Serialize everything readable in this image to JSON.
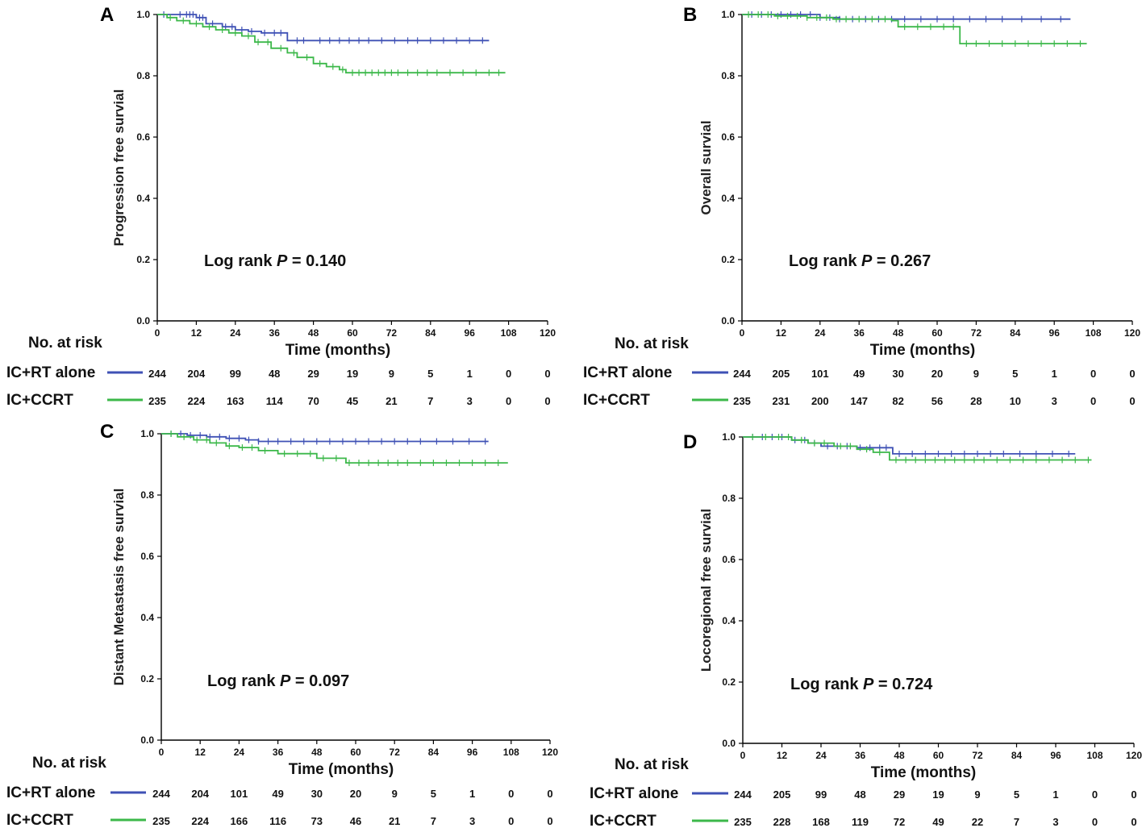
{
  "colors": {
    "ic_rt": "#3f51b5",
    "ic_ccrt": "#3cb84a",
    "axis": "#000000"
  },
  "risk_title": "No. at risk",
  "chart_data": [
    {
      "type": "line",
      "panel": "A",
      "ylabel": "Progression free survial",
      "xlabel": "Time (months)",
      "xlim": [
        0,
        120
      ],
      "ylim": [
        0,
        1.0
      ],
      "xticks": [
        "0",
        "12",
        "24",
        "36",
        "48",
        "60",
        "72",
        "84",
        "96",
        "108",
        "120"
      ],
      "yticks": [
        "0.0",
        "0.2",
        "0.4",
        "0.6",
        "0.8",
        "1.0"
      ],
      "logrank_prefix": "Log rank ",
      "logrank_p": "P",
      "logrank_value": " = 0.140",
      "series": [
        {
          "name": "IC+RT alone",
          "color": "#3f51b5",
          "x": [
            0,
            5,
            12,
            15,
            20,
            24,
            28,
            32,
            40,
            102
          ],
          "y": [
            1.0,
            1.0,
            0.99,
            0.97,
            0.96,
            0.95,
            0.945,
            0.94,
            0.915,
            0.915
          ],
          "censor_x": [
            2,
            7,
            9,
            10,
            11,
            13,
            14,
            17,
            21,
            23,
            26,
            29,
            33,
            36,
            38,
            43,
            45,
            50,
            53,
            56,
            59,
            62,
            65,
            69,
            73,
            77,
            80,
            84,
            88,
            92,
            96,
            100
          ],
          "at_risk": [
            "244",
            "204",
            "99",
            "48",
            "29",
            "19",
            "9",
            "5",
            "1",
            "0",
            "0"
          ]
        },
        {
          "name": "IC+CCRT",
          "color": "#3cb84a",
          "x": [
            0,
            3,
            6,
            10,
            14,
            18,
            22,
            26,
            30,
            35,
            40,
            43,
            48,
            52,
            56,
            58,
            107
          ],
          "y": [
            1.0,
            0.99,
            0.98,
            0.97,
            0.96,
            0.95,
            0.94,
            0.93,
            0.91,
            0.89,
            0.875,
            0.86,
            0.84,
            0.83,
            0.82,
            0.81,
            0.81
          ],
          "censor_x": [
            4,
            8,
            12,
            16,
            20,
            24,
            28,
            31,
            34,
            38,
            42,
            46,
            50,
            54,
            57,
            60,
            62,
            64,
            66,
            68,
            70,
            72,
            74,
            77,
            80,
            83,
            86,
            90,
            94,
            98,
            102,
            105
          ],
          "at_risk": [
            "235",
            "224",
            "163",
            "114",
            "70",
            "45",
            "21",
            "7",
            "3",
            "0",
            "0"
          ]
        }
      ]
    },
    {
      "type": "line",
      "panel": "B",
      "ylabel": "Overall survial",
      "xlabel": "Time (months)",
      "xlim": [
        0,
        120
      ],
      "ylim": [
        0,
        1.0
      ],
      "xticks": [
        "0",
        "12",
        "24",
        "36",
        "48",
        "60",
        "72",
        "84",
        "96",
        "108",
        "120"
      ],
      "yticks": [
        "0.0",
        "0.2",
        "0.4",
        "0.6",
        "0.8",
        "1.0"
      ],
      "logrank_prefix": "Log rank ",
      "logrank_p": "P",
      "logrank_value": " = 0.267",
      "series": [
        {
          "name": "IC+RT alone",
          "color": "#3f51b5",
          "x": [
            0,
            15,
            24,
            30,
            101
          ],
          "y": [
            1.0,
            1.0,
            0.99,
            0.985,
            0.985
          ],
          "censor_x": [
            3,
            6,
            9,
            12,
            15,
            18,
            21,
            24,
            27,
            30,
            34,
            38,
            42,
            46,
            50,
            55,
            60,
            65,
            70,
            75,
            80,
            86,
            92,
            98
          ],
          "at_risk": [
            "244",
            "205",
            "101",
            "49",
            "30",
            "20",
            "9",
            "5",
            "1",
            "0",
            "0"
          ]
        },
        {
          "name": "IC+CCRT",
          "color": "#3cb84a",
          "x": [
            0,
            10,
            20,
            28,
            46,
            48,
            66,
            67,
            106
          ],
          "y": [
            1.0,
            0.995,
            0.99,
            0.985,
            0.98,
            0.96,
            0.96,
            0.905,
            0.905
          ],
          "censor_x": [
            2,
            5,
            8,
            11,
            14,
            17,
            20,
            23,
            26,
            29,
            32,
            36,
            40,
            44,
            50,
            54,
            58,
            62,
            65,
            69,
            72,
            76,
            80,
            84,
            88,
            92,
            96,
            100,
            104
          ],
          "at_risk": [
            "235",
            "231",
            "200",
            "147",
            "82",
            "56",
            "28",
            "10",
            "3",
            "0",
            "0"
          ]
        }
      ]
    },
    {
      "type": "line",
      "panel": "C",
      "ylabel": "Distant Metastasis free survial",
      "xlabel": "Time (months)",
      "xlim": [
        0,
        120
      ],
      "ylim": [
        0,
        1.0
      ],
      "xticks": [
        "0",
        "12",
        "24",
        "36",
        "48",
        "60",
        "72",
        "84",
        "96",
        "108",
        "120"
      ],
      "yticks": [
        "0.0",
        "0.2",
        "0.4",
        "0.6",
        "0.8",
        "1.0"
      ],
      "logrank_prefix": "Log rank ",
      "logrank_p": "P",
      "logrank_value": " = 0.097",
      "series": [
        {
          "name": "IC+RT alone",
          "color": "#3f51b5",
          "x": [
            0,
            8,
            14,
            20,
            26,
            30,
            101
          ],
          "y": [
            1.0,
            0.995,
            0.99,
            0.985,
            0.98,
            0.975,
            0.975
          ],
          "censor_x": [
            3,
            6,
            9,
            12,
            15,
            18,
            21,
            24,
            27,
            30,
            33,
            36,
            40,
            44,
            48,
            52,
            56,
            60,
            64,
            68,
            72,
            76,
            80,
            85,
            90,
            95,
            100
          ],
          "at_risk": [
            "244",
            "204",
            "101",
            "49",
            "30",
            "20",
            "9",
            "5",
            "1",
            "0",
            "0"
          ]
        },
        {
          "name": "IC+CCRT",
          "color": "#3cb84a",
          "x": [
            0,
            5,
            10,
            15,
            20,
            24,
            30,
            36,
            48,
            57,
            107
          ],
          "y": [
            1.0,
            0.99,
            0.98,
            0.97,
            0.96,
            0.955,
            0.945,
            0.935,
            0.92,
            0.905,
            0.905
          ],
          "censor_x": [
            3,
            7,
            11,
            14,
            17,
            21,
            25,
            28,
            32,
            38,
            42,
            46,
            50,
            54,
            58,
            61,
            64,
            67,
            70,
            73,
            76,
            80,
            84,
            88,
            92,
            96,
            100,
            104
          ],
          "at_risk": [
            "235",
            "224",
            "166",
            "116",
            "73",
            "46",
            "21",
            "7",
            "3",
            "0",
            "0"
          ]
        }
      ]
    },
    {
      "type": "line",
      "panel": "D",
      "ylabel": "Locoregional free survial",
      "xlabel": "Time (months)",
      "xlim": [
        0,
        120
      ],
      "ylim": [
        0,
        1.0
      ],
      "xticks": [
        "0",
        "12",
        "24",
        "36",
        "48",
        "60",
        "72",
        "84",
        "96",
        "108",
        "120"
      ],
      "yticks": [
        "0.0",
        "0.2",
        "0.4",
        "0.6",
        "0.8",
        "1.0"
      ],
      "logrank_prefix": "Log rank ",
      "logrank_p": "P",
      "logrank_value": " = 0.724",
      "series": [
        {
          "name": "IC+RT alone",
          "color": "#3f51b5",
          "x": [
            0,
            15,
            20,
            24,
            35,
            46,
            102
          ],
          "y": [
            1.0,
            0.99,
            0.98,
            0.97,
            0.965,
            0.945,
            0.945
          ],
          "censor_x": [
            3,
            6,
            9,
            12,
            16,
            19,
            22,
            26,
            29,
            32,
            36,
            39,
            42,
            44,
            48,
            52,
            56,
            60,
            64,
            68,
            72,
            76,
            80,
            85,
            90,
            95,
            100
          ],
          "at_risk": [
            "244",
            "205",
            "99",
            "48",
            "29",
            "19",
            "9",
            "5",
            "1",
            "0",
            "0"
          ]
        },
        {
          "name": "IC+CCRT",
          "color": "#3cb84a",
          "x": [
            0,
            15,
            20,
            28,
            35,
            40,
            45,
            107
          ],
          "y": [
            1.0,
            0.99,
            0.98,
            0.97,
            0.96,
            0.95,
            0.925,
            0.925
          ],
          "censor_x": [
            3,
            7,
            11,
            14,
            18,
            22,
            25,
            30,
            33,
            38,
            42,
            47,
            50,
            53,
            56,
            59,
            62,
            65,
            68,
            71,
            74,
            78,
            82,
            86,
            90,
            94,
            98,
            102,
            106
          ],
          "at_risk": [
            "235",
            "228",
            "168",
            "119",
            "72",
            "49",
            "22",
            "7",
            "3",
            "0",
            "0"
          ]
        }
      ]
    }
  ]
}
